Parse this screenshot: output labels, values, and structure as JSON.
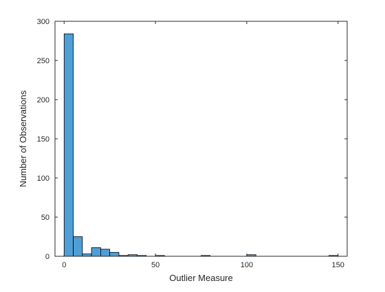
{
  "chart_data": {
    "type": "bar",
    "subtype": "histogram",
    "title": "",
    "xlabel": "Outlier Measure",
    "ylabel": "Number of Observations",
    "xlim": [
      -5,
      155
    ],
    "ylim": [
      0,
      300
    ],
    "xticks": [
      0,
      50,
      100,
      150
    ],
    "yticks": [
      0,
      50,
      100,
      150,
      200,
      250,
      300
    ],
    "bin_width": 5,
    "bin_starts": [
      0,
      5,
      10,
      15,
      20,
      25,
      30,
      35,
      40,
      50,
      75,
      100,
      145
    ],
    "values": [
      284,
      25,
      3,
      11,
      9,
      5,
      1,
      2,
      1,
      1,
      1,
      2,
      1
    ],
    "bar_color": "#4f9fd6",
    "edge_color": "#000000",
    "grid": false,
    "legend": "none",
    "box": true
  }
}
